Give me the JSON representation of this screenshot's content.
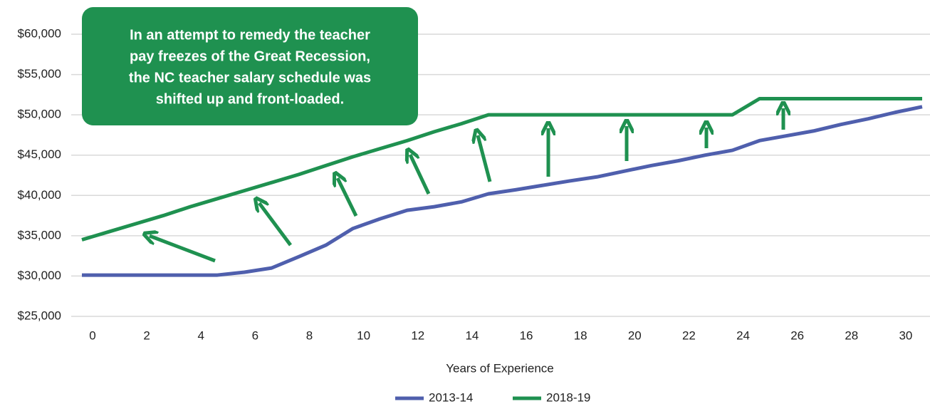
{
  "chart_data": {
    "type": "line",
    "annotation": [
      "In an attempt to remedy the teacher",
      "pay freezes of the Great Recession,",
      "the NC teacher salary schedule was",
      "shifted up and front-loaded."
    ],
    "x_label": "Years of Experience",
    "x": [
      0,
      1,
      2,
      3,
      4,
      5,
      6,
      7,
      8,
      9,
      10,
      11,
      12,
      13,
      14,
      15,
      16,
      17,
      18,
      19,
      20,
      21,
      22,
      23,
      24,
      25,
      26,
      27,
      28,
      29,
      30,
      31
    ],
    "series": [
      {
        "name": "2013-14",
        "color": "#4f5fad",
        "values": [
          30120,
          30120,
          30120,
          30120,
          30120,
          30120,
          30480,
          31000,
          32400,
          33830,
          35900,
          37100,
          38160,
          38600,
          39200,
          40200,
          40700,
          41250,
          41800,
          42300,
          43000,
          43700,
          44300,
          45000,
          45600,
          46800,
          47400,
          48000,
          48800,
          49500,
          50300,
          51000
        ]
      },
      {
        "name": "2018-19",
        "color": "#1f9150",
        "values": [
          34500,
          35500,
          36500,
          37500,
          38600,
          39600,
          40600,
          41600,
          42600,
          43700,
          44800,
          45800,
          46800,
          47900,
          48900,
          50000,
          50000,
          50000,
          50000,
          50000,
          50000,
          50000,
          50000,
          50000,
          50000,
          52000,
          52000,
          52000,
          52000,
          52000,
          52000,
          52000
        ]
      }
    ],
    "xlim": [
      0,
      31
    ],
    "xticks": [
      0,
      2,
      4,
      6,
      8,
      10,
      12,
      14,
      16,
      18,
      20,
      22,
      24,
      26,
      28,
      30
    ],
    "ylim": [
      25000,
      60000
    ],
    "yticks": [
      {
        "value": 25000,
        "label": "$25,000"
      },
      {
        "value": 30000,
        "label": "$30,000"
      },
      {
        "value": 35000,
        "label": "$35,000"
      },
      {
        "value": 40000,
        "label": "$40,000"
      },
      {
        "value": 45000,
        "label": "$45,000"
      },
      {
        "value": 50000,
        "label": "$50,000"
      },
      {
        "value": 55000,
        "label": "$55,000"
      },
      {
        "value": 60000,
        "label": "$60,000"
      }
    ],
    "grid": true
  }
}
